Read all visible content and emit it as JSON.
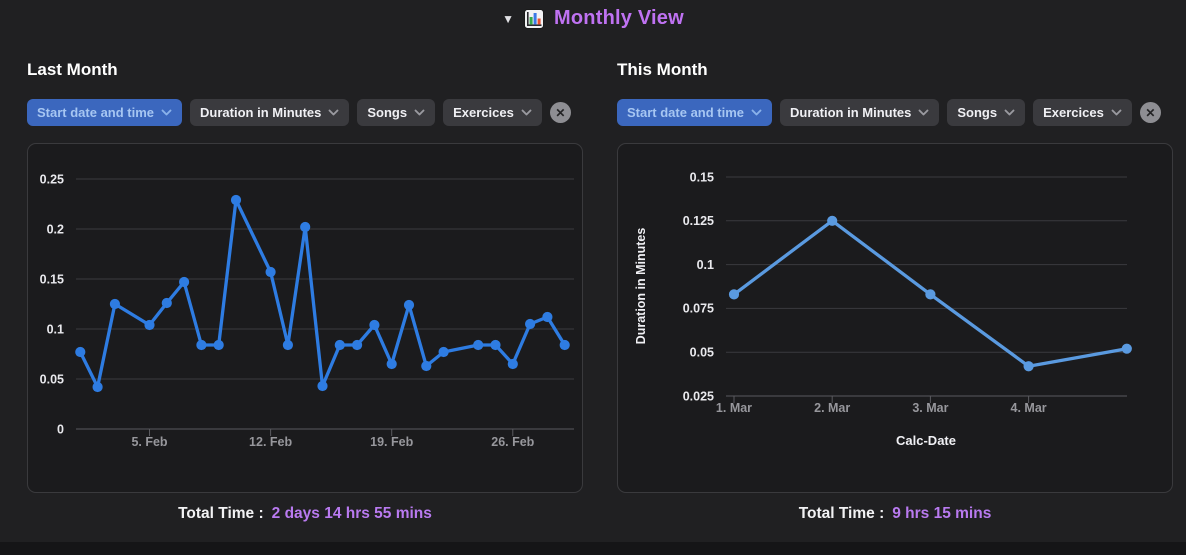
{
  "header": {
    "collapse_icon": "▼",
    "title": "Monthly View"
  },
  "panels": [
    {
      "title": "Last Month",
      "filters": [
        {
          "label": "Start date and time",
          "active": true
        },
        {
          "label": "Duration in Minutes",
          "active": false
        },
        {
          "label": "Songs",
          "active": false
        },
        {
          "label": "Exercices",
          "active": false
        }
      ],
      "clear_icon": "✕",
      "total_label": "Total Time :",
      "total_value": "2 days 14 hrs 55 mins"
    },
    {
      "title": "This Month",
      "filters": [
        {
          "label": "Start date and time",
          "active": true
        },
        {
          "label": "Duration in Minutes",
          "active": false
        },
        {
          "label": "Songs",
          "active": false
        },
        {
          "label": "Exercices",
          "active": false
        }
      ],
      "clear_icon": "✕",
      "total_label": "Total Time :",
      "total_value": "9 hrs 15 mins"
    }
  ],
  "chart_data": [
    {
      "type": "line",
      "title": "Last Month",
      "series_name": "Duration in Minutes",
      "xlabel": "",
      "ylabel": "",
      "ylim": [
        0,
        0.25
      ],
      "grid": true,
      "line_color": "#2e7ce2",
      "y_ticks": [
        {
          "label": "0",
          "value": 0
        },
        {
          "label": "0.05",
          "value": 0.05
        },
        {
          "label": "0.1",
          "value": 0.1
        },
        {
          "label": "0.15",
          "value": 0.15
        },
        {
          "label": "0.2",
          "value": 0.2
        },
        {
          "label": "0.25",
          "value": 0.25
        }
      ],
      "x_ticks": [
        {
          "label": "5. Feb",
          "day": 5
        },
        {
          "label": "12. Feb",
          "day": 12
        },
        {
          "label": "19. Feb",
          "day": 19
        },
        {
          "label": "26. Feb",
          "day": 26
        }
      ],
      "month": "Feb",
      "days": [
        1,
        2,
        3,
        5,
        6,
        7,
        8,
        9,
        10,
        12,
        13,
        14,
        15,
        16,
        17,
        18,
        19,
        20,
        21,
        22,
        24,
        25,
        26,
        27,
        28,
        29
      ],
      "values": [
        0.077,
        0.042,
        0.125,
        0.104,
        0.126,
        0.147,
        0.084,
        0.084,
        0.229,
        0.157,
        0.084,
        0.202,
        0.043,
        0.084,
        0.084,
        0.104,
        0.065,
        0.124,
        0.063,
        0.077,
        0.084,
        0.084,
        0.065,
        0.105,
        0.112,
        0.084
      ]
    },
    {
      "type": "line",
      "title": "This Month",
      "series_name": "Duration in Minutes",
      "xlabel": "Calc-Date",
      "ylabel": "Duration in Minutes",
      "ylim": [
        0.025,
        0.15
      ],
      "grid": true,
      "line_color": "#5a9ae0",
      "y_ticks": [
        {
          "label": "0.025",
          "value": 0.025
        },
        {
          "label": "0.05",
          "value": 0.05
        },
        {
          "label": "0.075",
          "value": 0.075
        },
        {
          "label": "0.1",
          "value": 0.1
        },
        {
          "label": "0.125",
          "value": 0.125
        },
        {
          "label": "0.15",
          "value": 0.15
        }
      ],
      "x_ticks": [
        {
          "label": "1. Mar",
          "day": 1
        },
        {
          "label": "2. Mar",
          "day": 2
        },
        {
          "label": "3. Mar",
          "day": 3
        },
        {
          "label": "4. Mar",
          "day": 4
        }
      ],
      "month": "Mar",
      "days": [
        1,
        2,
        3,
        4,
        5
      ],
      "values": [
        0.083,
        0.125,
        0.083,
        0.042,
        0.052
      ]
    }
  ]
}
